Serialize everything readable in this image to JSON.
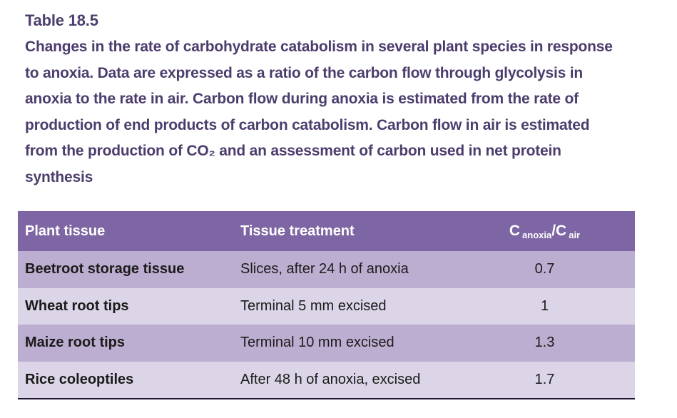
{
  "title": "Table 18.5",
  "caption_lines": [
    "Changes in the rate of carbohydrate catabolism in several plant species in response",
    "to anoxia. Data are expressed as a ratio of the carbon flow through glycolysis in",
    "anoxia to the rate in air. Carbon flow during anoxia is estimated from the rate of",
    "production of end products of carbon catabolism. Carbon flow in air is estimated",
    "from the production of CO₂ and an assessment of carbon used in net protein",
    "synthesis"
  ],
  "table": {
    "header": {
      "col1": "Plant tissue",
      "col2": "Tissue treatment",
      "col3": {
        "base1": "C",
        "sub1": "anoxia",
        "base2": "/C",
        "sub2": "air"
      }
    },
    "rows": [
      {
        "tissue": "Beetroot storage tissue",
        "treatment": "Slices, after 24 h of anoxia",
        "ratio": "0.7"
      },
      {
        "tissue": "Wheat root tips",
        "treatment": "Terminal 5 mm excised",
        "ratio": "1"
      },
      {
        "tissue": "Maize root tips",
        "treatment": "Terminal 10 mm excised",
        "ratio": "1.3"
      },
      {
        "tissue": "Rice coleoptiles",
        "treatment": "After 48 h of anoxia, excised",
        "ratio": "1.7"
      }
    ]
  },
  "colors": {
    "caption_text": "#4c3d6d",
    "header_bg": "#7d66a3",
    "header_text": "#ffffff",
    "row_odd_bg": "#bcaed0",
    "row_even_bg": "#dcd5e7",
    "body_text": "#1b1b1b",
    "bottom_border": "#1c1430"
  }
}
